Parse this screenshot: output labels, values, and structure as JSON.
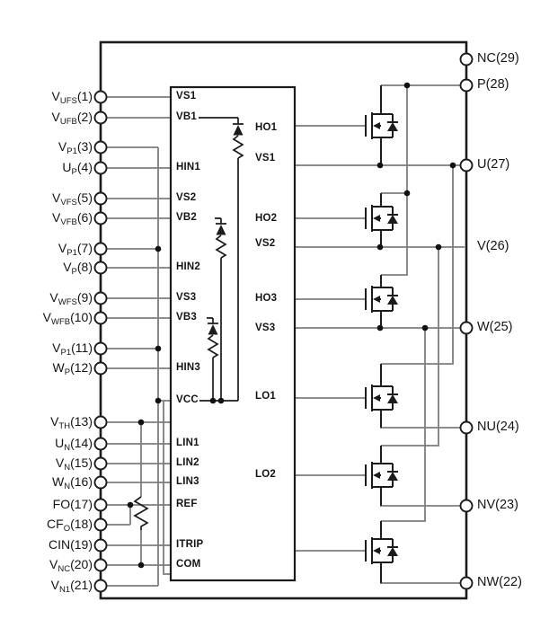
{
  "figure": {
    "type": "ic-block-schematic",
    "background_color": "#ffffff",
    "wire_color": "#7d7d7d",
    "ink_color": "#1b1b1b",
    "description": "Three-phase inverter power module internal block diagram with gate-driver IC, three bootstrap diode-resistor networks, thermistor divider and six power MOSFETs with body diodes"
  },
  "pins": {
    "left": [
      {
        "base": "V",
        "sub": "UFS",
        "suffix": "(1)"
      },
      {
        "base": "V",
        "sub": "UFB",
        "suffix": "(2)"
      },
      {
        "base": "V",
        "sub": "P1",
        "suffix": "(3)"
      },
      {
        "base": "U",
        "sub": "P",
        "suffix": "(4)"
      },
      {
        "base": "V",
        "sub": "VFS",
        "suffix": "(5)"
      },
      {
        "base": "V",
        "sub": "VFB",
        "suffix": "(6)"
      },
      {
        "base": "V",
        "sub": "P1",
        "suffix": "(7)"
      },
      {
        "base": "V",
        "sub": "P",
        "suffix": "(8)"
      },
      {
        "base": "V",
        "sub": "WFS",
        "suffix": "(9)"
      },
      {
        "base": "V",
        "sub": "WFB",
        "suffix": "(10)"
      },
      {
        "base": "V",
        "sub": "P1",
        "suffix": "(11)"
      },
      {
        "base": "W",
        "sub": "P",
        "suffix": "(12)"
      },
      {
        "base": "V",
        "sub": "TH",
        "suffix": "(13)"
      },
      {
        "base": "U",
        "sub": "N",
        "suffix": "(14)"
      },
      {
        "base": "V",
        "sub": "N",
        "suffix": "(15)"
      },
      {
        "base": "W",
        "sub": "N",
        "suffix": "(16)"
      },
      {
        "base": "FO",
        "sub": "",
        "suffix": "(17)"
      },
      {
        "base": "CF",
        "sub": "O",
        "suffix": "(18)"
      },
      {
        "base": "CIN",
        "sub": "",
        "suffix": "(19)"
      },
      {
        "base": "V",
        "sub": "NC",
        "suffix": "(20)"
      },
      {
        "base": "V",
        "sub": "N1",
        "suffix": "(21)"
      }
    ],
    "right": [
      "NC(29)",
      "P(28)",
      "U(27)",
      "V(26)",
      "W(25)",
      "NU(24)",
      "NV(23)",
      "NW(22)"
    ]
  },
  "ic": {
    "left_ports": [
      "VS1",
      "VB1",
      "HIN1",
      "VS2",
      "VB2",
      "HIN2",
      "VS3",
      "VB3",
      "HIN3",
      "VCC",
      "LIN1",
      "LIN2",
      "LIN3",
      "REF",
      "ITRIP",
      "COM"
    ],
    "right_ports": [
      "HO1",
      "VS1",
      "HO2",
      "VS2",
      "HO3",
      "VS3",
      "LO1",
      "LO2"
    ]
  }
}
